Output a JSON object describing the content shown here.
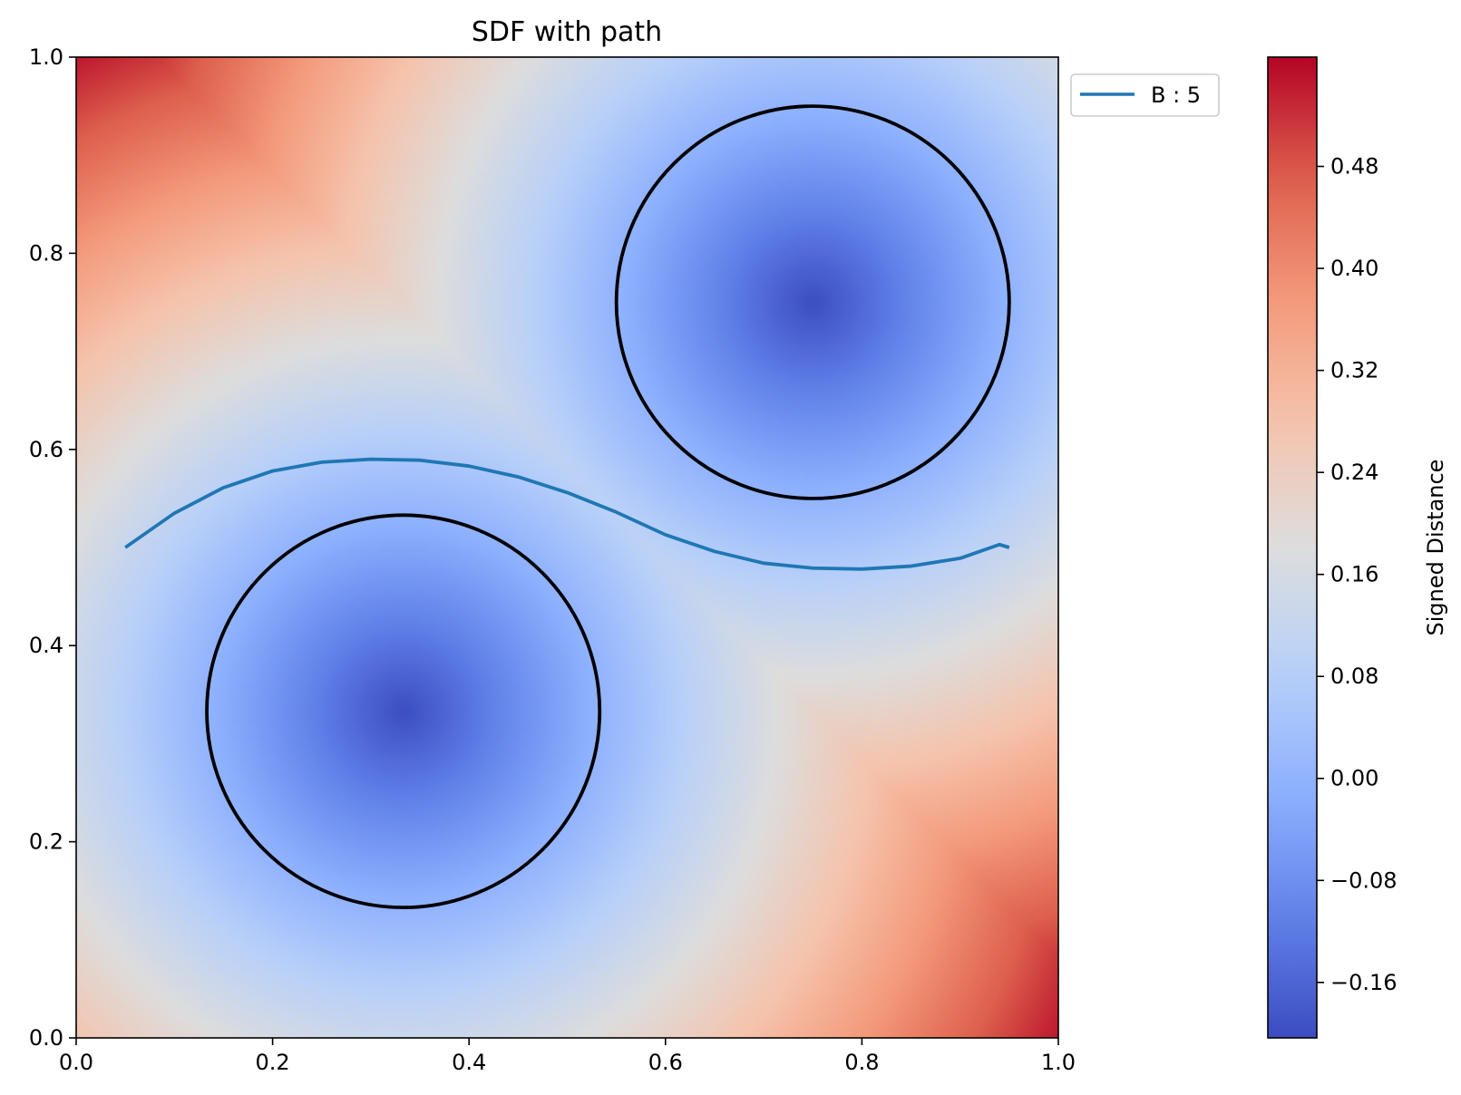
{
  "chart_data": {
    "type": "heatmap",
    "title": "SDF with path",
    "xlabel": "",
    "ylabel": "",
    "xlim": [
      0.0,
      1.0
    ],
    "ylim": [
      0.0,
      1.0
    ],
    "x_ticks": [
      "0.0",
      "0.2",
      "0.4",
      "0.6",
      "0.8",
      "1.0"
    ],
    "y_ticks": [
      "0.0",
      "0.2",
      "0.4",
      "0.6",
      "0.8",
      "1.0"
    ],
    "grid": false,
    "colormap": "coolwarm",
    "colorbar": {
      "label": "Signed Distance",
      "range": [
        -0.2035,
        0.5657
      ],
      "ticks": [
        -0.16,
        -0.08,
        0.0,
        0.08,
        0.16,
        0.24,
        0.32,
        0.4,
        0.48
      ],
      "tick_labels": [
        "−0.16",
        "−0.08",
        "0.00",
        "0.08",
        "0.16",
        "0.24",
        "0.32",
        "0.40",
        "0.48"
      ]
    },
    "obstacles": [
      {
        "center": [
          0.333,
          0.333
        ],
        "radius": 0.2
      },
      {
        "center": [
          0.75,
          0.75
        ],
        "radius": 0.2
      }
    ],
    "series": [
      {
        "name": "B : 5",
        "color": "#1f77b4",
        "x": [
          0.05,
          0.1,
          0.15,
          0.2,
          0.25,
          0.3,
          0.35,
          0.4,
          0.45,
          0.5,
          0.55,
          0.6,
          0.65,
          0.7,
          0.75,
          0.8,
          0.85,
          0.9,
          0.94,
          0.95
        ],
        "y": [
          0.5,
          0.535,
          0.561,
          0.578,
          0.587,
          0.59,
          0.589,
          0.583,
          0.572,
          0.556,
          0.536,
          0.513,
          0.496,
          0.484,
          0.479,
          0.478,
          0.481,
          0.489,
          0.503,
          0.5
        ]
      }
    ],
    "legend": {
      "placement": "outside-top-right",
      "entries": [
        "B : 5"
      ]
    }
  }
}
